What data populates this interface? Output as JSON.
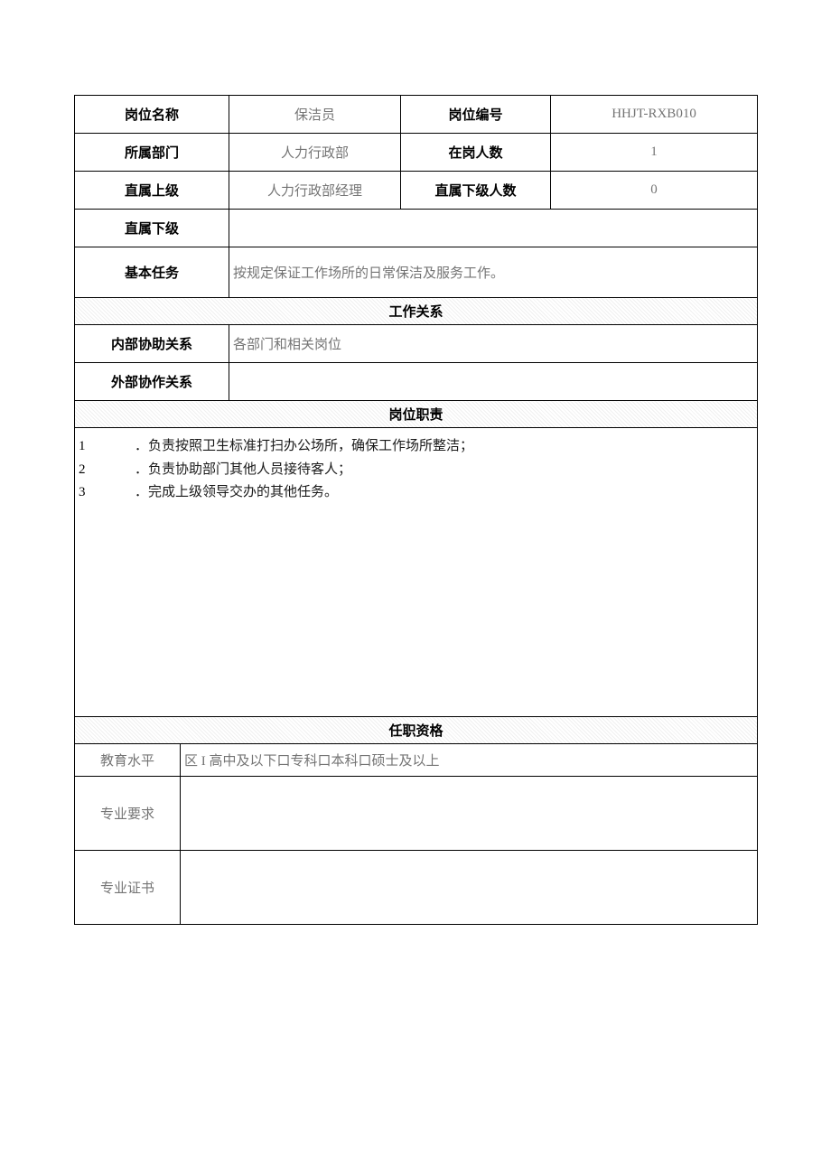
{
  "cols": {
    "c1": 171,
    "c2": 190,
    "c3": 166,
    "c4": 229
  },
  "labels": {
    "position_name": "岗位名称",
    "position_code": "岗位编号",
    "department": "所属部门",
    "headcount": "在岗人数",
    "supervisor": "直属上级",
    "subordinate_count": "直属下级人数",
    "subordinates": "直属下级",
    "basic_task": "基本任务",
    "work_relations": "工作关系",
    "internal_relation": "内部协助关系",
    "external_relation": "外部协作关系",
    "duties": "岗位职责",
    "qualifications": "任职资格",
    "education": "教育水平",
    "major_req": "专业要求",
    "certificate": "专业证书"
  },
  "values": {
    "position_name": "保洁员",
    "position_code": "HHJT-RXB010",
    "department": "人力行政部",
    "headcount": "1",
    "supervisor": "人力行政部经理",
    "subordinate_count": "0",
    "subordinates": "",
    "basic_task": "按规定保证工作场所的日常保洁及服务工作。",
    "internal_relation": "各部门和相关岗位",
    "external_relation": "",
    "education": "区 I 高中及以下口专科口本科口硕士及以上",
    "major_req": "",
    "certificate": ""
  },
  "duties": [
    {
      "n": "1",
      "t": "．负责按照卫生标准打扫办公场所，确保工作场所整洁；"
    },
    {
      "n": "2",
      "t": "．负责协助部门其他人员接待客人；"
    },
    {
      "n": "3",
      "t": "．完成上级领导交办的其他任务。"
    }
  ],
  "style": {
    "border_color": "#000000",
    "page_bg": "#ffffff",
    "label_color": "#000000",
    "value_color": "#747474",
    "font_size_pt": 11,
    "section_bg_pattern": "diagonal-hatch-light-gray"
  }
}
